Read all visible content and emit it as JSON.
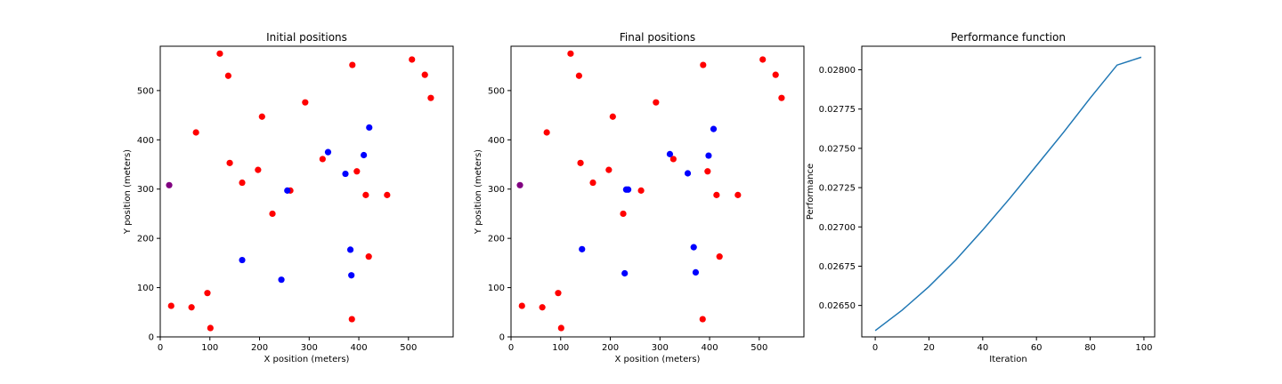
{
  "chart_data": [
    {
      "type": "scatter",
      "title": "Initial positions",
      "xlabel": "X position (meters)",
      "ylabel": "Y position (meters)",
      "xlim": [
        0,
        590
      ],
      "ylim": [
        0,
        590
      ],
      "xticks": [
        0,
        100,
        200,
        300,
        400,
        500
      ],
      "yticks": [
        0,
        100,
        200,
        300,
        400,
        500
      ],
      "grid": false,
      "series": [
        {
          "color": "#ff0000",
          "points": [
            [
              120,
              575
            ],
            [
              137,
              530
            ],
            [
              72,
              415
            ],
            [
              205,
              447
            ],
            [
              292,
              476
            ],
            [
              387,
              552
            ],
            [
              507,
              563
            ],
            [
              533,
              532
            ],
            [
              545,
              485
            ],
            [
              140,
              353
            ],
            [
              165,
              313
            ],
            [
              197,
              339
            ],
            [
              226,
              250
            ],
            [
              262,
              297
            ],
            [
              327,
              361
            ],
            [
              396,
              336
            ],
            [
              414,
              288
            ],
            [
              457,
              288
            ],
            [
              420,
              163
            ],
            [
              95,
              89
            ],
            [
              22,
              63
            ],
            [
              63,
              60
            ],
            [
              101,
              18
            ],
            [
              386,
              36
            ]
          ]
        },
        {
          "color": "#0000ff",
          "points": [
            [
              338,
              375
            ],
            [
              373,
              331
            ],
            [
              410,
              369
            ],
            [
              421,
              425
            ],
            [
              256,
              297
            ],
            [
              165,
              156
            ],
            [
              244,
              116
            ],
            [
              383,
              177
            ],
            [
              385,
              125
            ]
          ]
        },
        {
          "color": "#800080",
          "points": [
            [
              18,
              308
            ]
          ]
        }
      ]
    },
    {
      "type": "scatter",
      "title": "Final positions",
      "xlabel": "X position (meters)",
      "ylabel": "Y position (meters)",
      "xlim": [
        0,
        590
      ],
      "ylim": [
        0,
        590
      ],
      "xticks": [
        0,
        100,
        200,
        300,
        400,
        500
      ],
      "yticks": [
        0,
        100,
        200,
        300,
        400,
        500
      ],
      "grid": false,
      "series": [
        {
          "color": "#ff0000",
          "points": [
            [
              120,
              575
            ],
            [
              137,
              530
            ],
            [
              72,
              415
            ],
            [
              205,
              447
            ],
            [
              292,
              476
            ],
            [
              387,
              552
            ],
            [
              507,
              563
            ],
            [
              533,
              532
            ],
            [
              545,
              485
            ],
            [
              140,
              353
            ],
            [
              165,
              313
            ],
            [
              197,
              339
            ],
            [
              226,
              250
            ],
            [
              262,
              297
            ],
            [
              327,
              361
            ],
            [
              396,
              336
            ],
            [
              414,
              288
            ],
            [
              457,
              288
            ],
            [
              420,
              163
            ],
            [
              95,
              89
            ],
            [
              22,
              63
            ],
            [
              63,
              60
            ],
            [
              101,
              18
            ],
            [
              386,
              36
            ]
          ]
        },
        {
          "color": "#0000ff",
          "points": [
            [
              320,
              371
            ],
            [
              356,
              332
            ],
            [
              398,
              368
            ],
            [
              408,
              422
            ],
            [
              232,
              299
            ],
            [
              236,
              299
            ],
            [
              143,
              178
            ],
            [
              368,
              182
            ],
            [
              372,
              131
            ],
            [
              229,
              129
            ]
          ]
        },
        {
          "color": "#800080",
          "points": [
            [
              18,
              308
            ]
          ]
        }
      ]
    },
    {
      "type": "line",
      "title": "Performance function",
      "xlabel": "Iteration",
      "ylabel": "Performance",
      "xlim": [
        -5,
        104
      ],
      "ylim": [
        0.0263,
        0.02815
      ],
      "xticks": [
        0,
        20,
        40,
        60,
        80,
        100
      ],
      "yticks": [
        0.0265,
        0.02675,
        0.027,
        0.02725,
        0.0275,
        0.02775,
        0.028
      ],
      "ytick_labels": [
        "0.02650",
        "0.02675",
        "0.02700",
        "0.02725",
        "0.02750",
        "0.02775",
        "0.02800"
      ],
      "grid": false,
      "series": [
        {
          "color": "#1f77b4",
          "x": [
            0,
            10,
            20,
            30,
            40,
            50,
            60,
            70,
            80,
            90,
            99
          ],
          "y": [
            0.02634,
            0.02647,
            0.02662,
            0.02679,
            0.02698,
            0.02718,
            0.02739,
            0.0276,
            0.02782,
            0.02803,
            0.02808
          ]
        }
      ]
    }
  ]
}
